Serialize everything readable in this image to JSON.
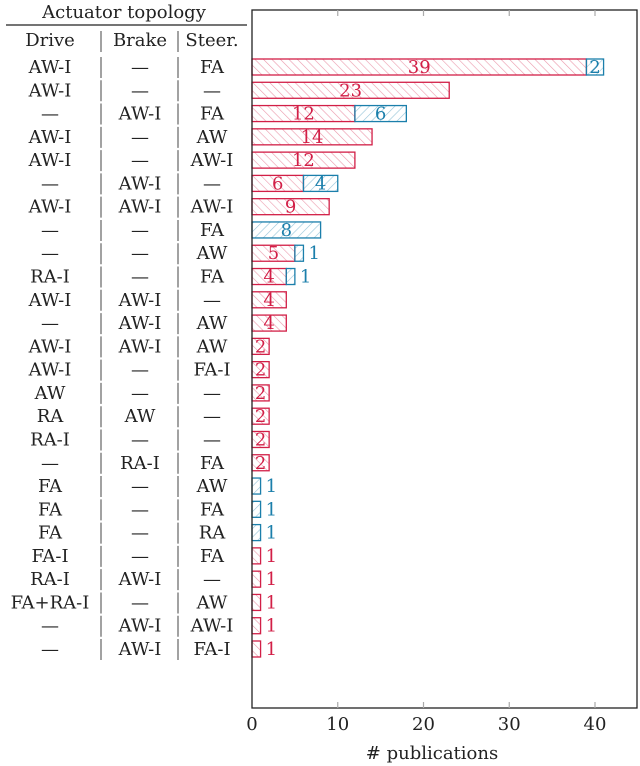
{
  "chart_data": {
    "type": "bar",
    "orientation": "horizontal",
    "stacked": true,
    "table_title": "Actuator topology",
    "columns": [
      "Drive",
      "Brake",
      "Steer."
    ],
    "xlabel": "# publications",
    "xlim": [
      0,
      45
    ],
    "xticks": [
      0,
      10,
      20,
      30,
      40
    ],
    "grid": false,
    "series": [
      {
        "id": "series-red",
        "color": "#d21f47"
      },
      {
        "id": "series-blue",
        "color": "#1b7fab"
      }
    ],
    "rows": [
      {
        "drive": "AW-I",
        "brake": "—",
        "steer": "FA",
        "values": [
          39,
          2
        ]
      },
      {
        "drive": "AW-I",
        "brake": "—",
        "steer": "—",
        "values": [
          23,
          0
        ]
      },
      {
        "drive": "—",
        "brake": "AW-I",
        "steer": "FA",
        "values": [
          12,
          6
        ]
      },
      {
        "drive": "AW-I",
        "brake": "—",
        "steer": "AW",
        "values": [
          14,
          0
        ]
      },
      {
        "drive": "AW-I",
        "brake": "—",
        "steer": "AW-I",
        "values": [
          12,
          0
        ]
      },
      {
        "drive": "—",
        "brake": "AW-I",
        "steer": "—",
        "values": [
          6,
          4
        ]
      },
      {
        "drive": "AW-I",
        "brake": "AW-I",
        "steer": "AW-I",
        "values": [
          9,
          0
        ]
      },
      {
        "drive": "—",
        "brake": "—",
        "steer": "FA",
        "values": [
          0,
          8
        ]
      },
      {
        "drive": "—",
        "brake": "—",
        "steer": "AW",
        "values": [
          5,
          1
        ]
      },
      {
        "drive": "RA-I",
        "brake": "—",
        "steer": "FA",
        "values": [
          4,
          1
        ]
      },
      {
        "drive": "AW-I",
        "brake": "AW-I",
        "steer": "—",
        "values": [
          4,
          0
        ]
      },
      {
        "drive": "—",
        "brake": "AW-I",
        "steer": "AW",
        "values": [
          4,
          0
        ]
      },
      {
        "drive": "AW-I",
        "brake": "AW-I",
        "steer": "AW",
        "values": [
          2,
          0
        ]
      },
      {
        "drive": "AW-I",
        "brake": "—",
        "steer": "FA-I",
        "values": [
          2,
          0
        ]
      },
      {
        "drive": "AW",
        "brake": "—",
        "steer": "—",
        "values": [
          2,
          0
        ]
      },
      {
        "drive": "RA",
        "brake": "AW",
        "steer": "—",
        "values": [
          2,
          0
        ]
      },
      {
        "drive": "RA-I",
        "brake": "—",
        "steer": "—",
        "values": [
          2,
          0
        ]
      },
      {
        "drive": "—",
        "brake": "RA-I",
        "steer": "FA",
        "values": [
          2,
          0
        ]
      },
      {
        "drive": "FA",
        "brake": "—",
        "steer": "AW",
        "values": [
          0,
          1
        ]
      },
      {
        "drive": "FA",
        "brake": "—",
        "steer": "FA",
        "values": [
          0,
          1
        ]
      },
      {
        "drive": "FA",
        "brake": "—",
        "steer": "RA",
        "values": [
          0,
          1
        ]
      },
      {
        "drive": "FA-I",
        "brake": "—",
        "steer": "FA",
        "values": [
          1,
          0
        ]
      },
      {
        "drive": "RA-I",
        "brake": "AW-I",
        "steer": "—",
        "values": [
          1,
          0
        ]
      },
      {
        "drive": "FA+RA-I",
        "brake": "—",
        "steer": "AW",
        "values": [
          1,
          0
        ]
      },
      {
        "drive": "—",
        "brake": "AW-I",
        "steer": "AW-I",
        "values": [
          1,
          0
        ]
      },
      {
        "drive": "—",
        "brake": "AW-I",
        "steer": "FA-I",
        "values": [
          1,
          0
        ]
      }
    ]
  }
}
